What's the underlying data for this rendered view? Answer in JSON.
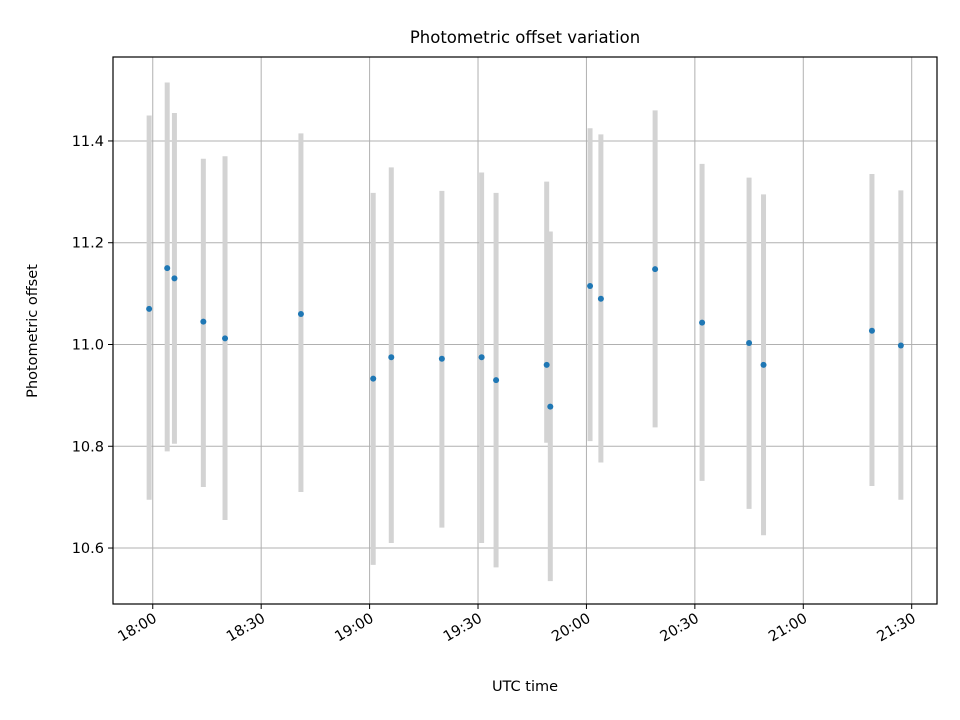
{
  "colors": {
    "point": "#1f77b4",
    "errorbar": "#d3d3d3",
    "grid": "#b0b0b0",
    "frame": "#000000"
  },
  "chart_data": {
    "type": "scatter",
    "title": "Photometric offset variation",
    "xlabel": "UTC time",
    "ylabel": "Photometric offset",
    "grid": true,
    "xlim": [
      "17:49",
      "21:37"
    ],
    "ylim": [
      10.49,
      11.565
    ],
    "x_ticks": [
      "18:00",
      "18:30",
      "19:00",
      "19:30",
      "20:00",
      "20:30",
      "21:00",
      "21:30"
    ],
    "y_ticks": [
      10.6,
      10.8,
      11.0,
      11.2,
      11.4
    ],
    "y_tick_labels": [
      "10.6",
      "10.8",
      "11.0",
      "11.2",
      "11.4"
    ],
    "series": [
      {
        "points": [
          {
            "x": "17:59",
            "y": 11.07,
            "ylow": 10.695,
            "yhigh": 11.45
          },
          {
            "x": "18:04",
            "y": 11.15,
            "ylow": 10.79,
            "yhigh": 11.515
          },
          {
            "x": "18:06",
            "y": 11.13,
            "ylow": 10.805,
            "yhigh": 11.455
          },
          {
            "x": "18:14",
            "y": 11.045,
            "ylow": 10.72,
            "yhigh": 11.365
          },
          {
            "x": "18:20",
            "y": 11.012,
            "ylow": 10.655,
            "yhigh": 11.37
          },
          {
            "x": "18:41",
            "y": 11.06,
            "ylow": 10.71,
            "yhigh": 11.415
          },
          {
            "x": "19:01",
            "y": 10.933,
            "ylow": 10.567,
            "yhigh": 11.298
          },
          {
            "x": "19:06",
            "y": 10.975,
            "ylow": 10.61,
            "yhigh": 11.348
          },
          {
            "x": "19:20",
            "y": 10.972,
            "ylow": 10.64,
            "yhigh": 11.302
          },
          {
            "x": "19:31",
            "y": 10.975,
            "ylow": 10.61,
            "yhigh": 11.338
          },
          {
            "x": "19:35",
            "y": 10.93,
            "ylow": 10.562,
            "yhigh": 11.298
          },
          {
            "x": "19:49",
            "y": 10.96,
            "ylow": 10.807,
            "yhigh": 11.32
          },
          {
            "x": "19:50",
            "y": 10.878,
            "ylow": 10.535,
            "yhigh": 11.222
          },
          {
            "x": "20:01",
            "y": 11.115,
            "ylow": 10.81,
            "yhigh": 11.425
          },
          {
            "x": "20:04",
            "y": 11.09,
            "ylow": 10.768,
            "yhigh": 11.413
          },
          {
            "x": "20:19",
            "y": 11.148,
            "ylow": 10.837,
            "yhigh": 11.46
          },
          {
            "x": "20:32",
            "y": 11.043,
            "ylow": 10.732,
            "yhigh": 11.355
          },
          {
            "x": "20:45",
            "y": 11.003,
            "ylow": 10.677,
            "yhigh": 11.328
          },
          {
            "x": "20:49",
            "y": 10.96,
            "ylow": 10.625,
            "yhigh": 11.295
          },
          {
            "x": "21:19",
            "y": 11.027,
            "ylow": 10.722,
            "yhigh": 11.335
          },
          {
            "x": "21:27",
            "y": 10.998,
            "ylow": 10.695,
            "yhigh": 11.303
          }
        ]
      }
    ]
  }
}
